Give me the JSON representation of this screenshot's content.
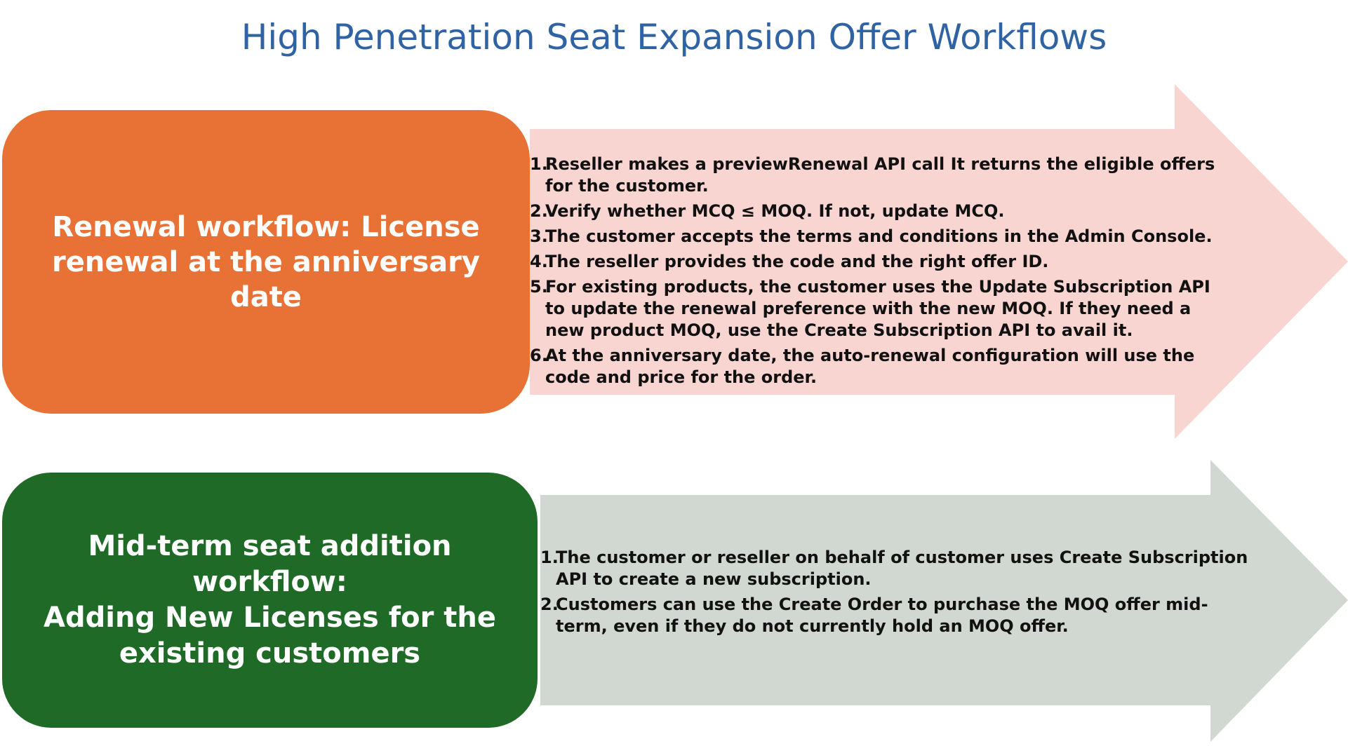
{
  "title": "High Penetration Seat Expansion Offer Workflows",
  "colors": {
    "title": "#2f63a3",
    "renewal_box": "#e87235",
    "renewal_arrow": "#f8d5d1",
    "midterm_box": "#1e6a26",
    "midterm_arrow": "#d1d8d1"
  },
  "renewal": {
    "heading_line1": "Renewal workflow: License",
    "heading_line2": "renewal at the anniversary date",
    "steps": [
      {
        "num": "1.",
        "text": "Reseller makes a previewRenewal API call It returns the eligible offers for the customer."
      },
      {
        "num": "2.",
        "text": "Verify whether MCQ ≤ MOQ. If not, update MCQ."
      },
      {
        "num": "3.",
        "text": " The customer accepts the terms and conditions in the Admin Console."
      },
      {
        "num": "4.",
        "text": "The reseller provides the code and the right offer ID."
      },
      {
        "num": "5.",
        "text": " For existing products, the customer uses the Update Subscription API to update the renewal preference with the new MOQ. If they need a new product MOQ, use the Create Subscription API to avail it."
      },
      {
        "num": "6.",
        "text": "At the anniversary date, the auto-renewal configuration will use the code and price for the order."
      }
    ]
  },
  "midterm": {
    "heading_line1": "Mid-term seat addition workflow:",
    "heading_line2": "Adding New Licenses for the",
    "heading_line3": "existing customers",
    "steps": [
      {
        "num": "1.",
        "text": " The customer or reseller on behalf of customer uses Create Subscription API to create a new subscription."
      },
      {
        "num": "2.",
        "text": " Customers can use the Create Order to purchase the MOQ offer mid-term, even if they do not currently hold an MOQ offer."
      }
    ]
  }
}
